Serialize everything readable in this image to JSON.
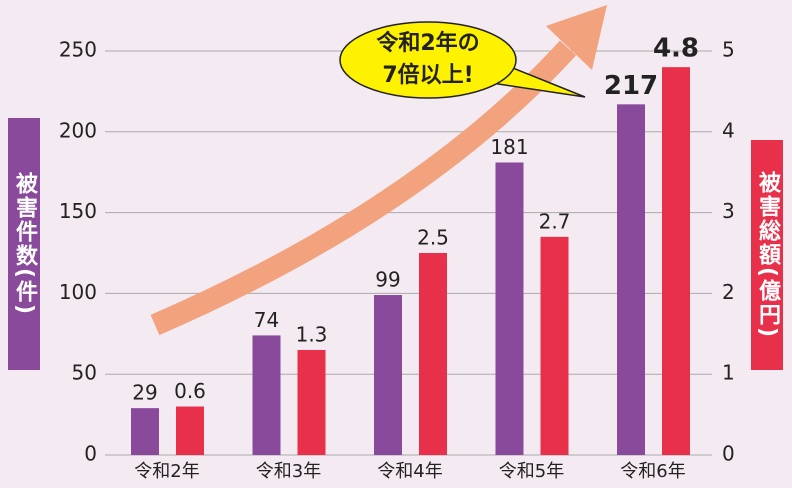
{
  "chart_data": {
    "type": "bar",
    "annotation": [
      "令和2年の",
      "7倍以上!"
    ],
    "y_label": "被害件数(件)",
    "y2_label": "被害総額(億円)",
    "categories": [
      "令和2年",
      "令和3年",
      "令和4年",
      "令和5年",
      "令和6年"
    ],
    "series": [
      {
        "color": "#8a4a9c",
        "values": [
          29,
          74,
          99,
          181,
          217
        ]
      },
      {
        "color": "#e8304a",
        "values": [
          0.6,
          1.3,
          2.5,
          2.7,
          4.8
        ],
        "axis": "y2"
      }
    ],
    "ylim": [
      0,
      250
    ],
    "yticks": [
      0,
      50,
      100,
      150,
      200,
      250
    ],
    "y2lim": [
      0,
      5
    ],
    "y2ticks": [
      0,
      1,
      2,
      3,
      4,
      5
    ],
    "grid": true
  }
}
